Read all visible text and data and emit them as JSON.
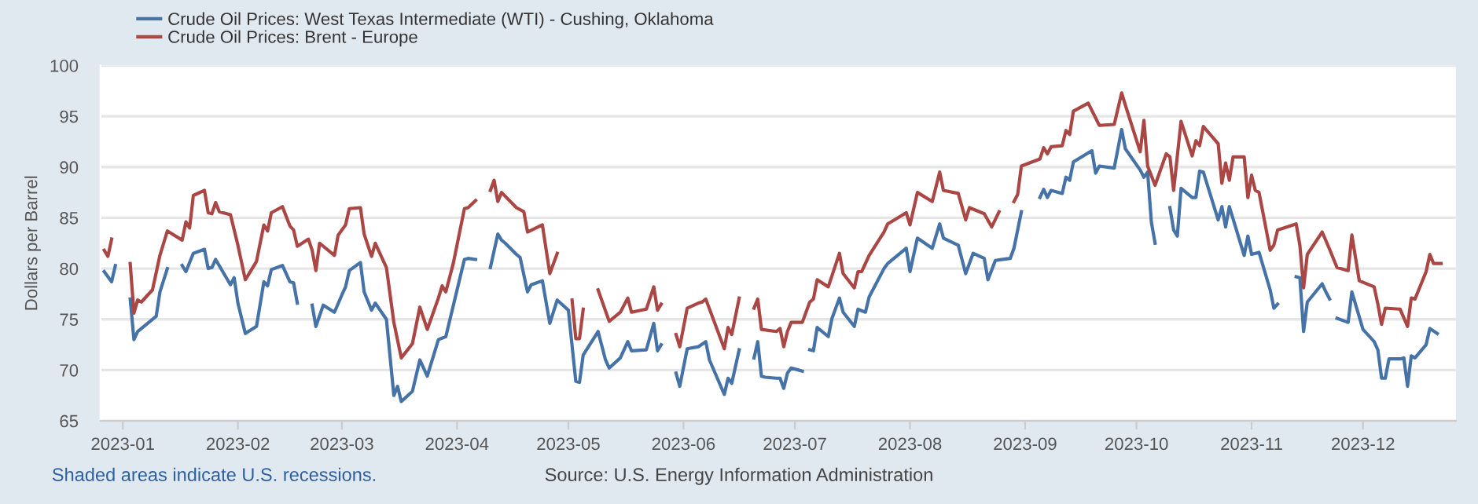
{
  "chart_data": {
    "type": "line",
    "ylabel": "Dollars per Barrel",
    "annotations": [
      "Shaded areas indicate U.S. recessions.",
      "Source: U.S. Energy Information Administration"
    ],
    "xlim": [
      "2022-12-26",
      "2023-12-26"
    ],
    "xticks": [
      {
        "value": "2023-01-01",
        "label": "2023-01"
      },
      {
        "value": "2023-02-01",
        "label": "2023-02"
      },
      {
        "value": "2023-03-01",
        "label": "2023-03"
      },
      {
        "value": "2023-04-01",
        "label": "2023-04"
      },
      {
        "value": "2023-05-01",
        "label": "2023-05"
      },
      {
        "value": "2023-06-01",
        "label": "2023-06"
      },
      {
        "value": "2023-07-01",
        "label": "2023-07"
      },
      {
        "value": "2023-08-01",
        "label": "2023-08"
      },
      {
        "value": "2023-09-01",
        "label": "2023-09"
      },
      {
        "value": "2023-10-01",
        "label": "2023-10"
      },
      {
        "value": "2023-11-01",
        "label": "2023-11"
      },
      {
        "value": "2023-12-01",
        "label": "2023-12"
      }
    ],
    "ylim": [
      65,
      100
    ],
    "yticks": [
      65,
      70,
      75,
      80,
      85,
      90,
      95,
      100
    ],
    "grid": "y",
    "legend": "top left",
    "line_style": "solid",
    "series": [
      {
        "name": "Crude Oil Prices: West Texas Intermediate (WTI) - Cushing, Oklahoma",
        "color": "#4572a7",
        "x": [
          "2022-12-27",
          "2022-12-29",
          "2022-12-30",
          "2023-01-02",
          "2023-01-03",
          "2023-01-04",
          "2023-01-05",
          "2023-01-10",
          "2023-01-11",
          "2023-01-13",
          "2023-01-16",
          "2023-01-17",
          "2023-01-18",
          "2023-01-20",
          "2023-01-23",
          "2023-01-24",
          "2023-01-25",
          "2023-01-26",
          "2023-01-30",
          "2023-01-31",
          "2023-02-01",
          "2023-02-03",
          "2023-02-06",
          "2023-02-08",
          "2023-02-09",
          "2023-02-10",
          "2023-02-13",
          "2023-02-15",
          "2023-02-16",
          "2023-02-17",
          "2023-02-20",
          "2023-02-21",
          "2023-02-22",
          "2023-02-24",
          "2023-02-27",
          "2023-03-01",
          "2023-03-02",
          "2023-03-03",
          "2023-03-06",
          "2023-03-07",
          "2023-03-09",
          "2023-03-10",
          "2023-03-13",
          "2023-03-15",
          "2023-03-16",
          "2023-03-17",
          "2023-03-20",
          "2023-03-22",
          "2023-03-24",
          "2023-03-27",
          "2023-03-29",
          "2023-04-03",
          "2023-04-04",
          "2023-04-06",
          "2023-04-07",
          "2023-04-10",
          "2023-04-12",
          "2023-04-13",
          "2023-04-14",
          "2023-04-17",
          "2023-04-18",
          "2023-04-20",
          "2023-04-21",
          "2023-04-24",
          "2023-04-26",
          "2023-04-28",
          "2023-05-01",
          "2023-05-03",
          "2023-05-04",
          "2023-05-05",
          "2023-05-09",
          "2023-05-11",
          "2023-05-12",
          "2023-05-15",
          "2023-05-17",
          "2023-05-18",
          "2023-05-22",
          "2023-05-24",
          "2023-05-25",
          "2023-05-26",
          "2023-05-29",
          "2023-05-30",
          "2023-05-31",
          "2023-06-02",
          "2023-06-05",
          "2023-06-07",
          "2023-06-08",
          "2023-06-12",
          "2023-06-13",
          "2023-06-14",
          "2023-06-16",
          "2023-06-19",
          "2023-06-20",
          "2023-06-21",
          "2023-06-22",
          "2023-06-23",
          "2023-06-26",
          "2023-06-27",
          "2023-06-28",
          "2023-06-29",
          "2023-06-30",
          "2023-07-03",
          "2023-07-04",
          "2023-07-05",
          "2023-07-06",
          "2023-07-07",
          "2023-07-10",
          "2023-07-11",
          "2023-07-13",
          "2023-07-14",
          "2023-07-17",
          "2023-07-18",
          "2023-07-20",
          "2023-07-21",
          "2023-07-25",
          "2023-07-26",
          "2023-07-31",
          "2023-08-01",
          "2023-08-03",
          "2023-08-07",
          "2023-08-09",
          "2023-08-10",
          "2023-08-14",
          "2023-08-16",
          "2023-08-18",
          "2023-08-21",
          "2023-08-22",
          "2023-08-24",
          "2023-08-28",
          "2023-08-29",
          "2023-08-31",
          "2023-09-04",
          "2023-09-05",
          "2023-09-06",
          "2023-09-07",
          "2023-09-08",
          "2023-09-11",
          "2023-09-12",
          "2023-09-13",
          "2023-09-14",
          "2023-09-18",
          "2023-09-19",
          "2023-09-20",
          "2023-09-21",
          "2023-09-25",
          "2023-09-27",
          "2023-09-28",
          "2023-10-02",
          "2023-10-03",
          "2023-10-04",
          "2023-10-05",
          "2023-10-06",
          "2023-10-09",
          "2023-10-10",
          "2023-10-11",
          "2023-10-12",
          "2023-10-13",
          "2023-10-16",
          "2023-10-17",
          "2023-10-18",
          "2023-10-19",
          "2023-10-23",
          "2023-10-24",
          "2023-10-25",
          "2023-10-26",
          "2023-10-30",
          "2023-10-31",
          "2023-11-01",
          "2023-11-03",
          "2023-11-06",
          "2023-11-07",
          "2023-11-08",
          "2023-11-10",
          "2023-11-13",
          "2023-11-14",
          "2023-11-15",
          "2023-11-16",
          "2023-11-20",
          "2023-11-21",
          "2023-11-22",
          "2023-11-23",
          "2023-11-24",
          "2023-11-27",
          "2023-11-28",
          "2023-12-01",
          "2023-12-04",
          "2023-12-05",
          "2023-12-06",
          "2023-12-07",
          "2023-12-08",
          "2023-12-11",
          "2023-12-12",
          "2023-12-13",
          "2023-12-14",
          "2023-12-15",
          "2023-12-18",
          "2023-12-19",
          "2023-12-21"
        ],
        "values": [
          79.7,
          78.7,
          80.3,
          null,
          77.0,
          73.0,
          73.8,
          75.3,
          77.7,
          80.0,
          null,
          80.3,
          79.7,
          81.5,
          81.9,
          80.0,
          80.1,
          80.9,
          78.4,
          79.1,
          76.6,
          73.6,
          74.3,
          78.7,
          78.3,
          79.9,
          80.3,
          78.7,
          78.6,
          76.6,
          null,
          76.4,
          74.3,
          76.4,
          75.7,
          77.4,
          78.2,
          79.8,
          80.6,
          77.7,
          75.9,
          76.6,
          75.0,
          67.5,
          68.4,
          66.9,
          67.9,
          71.0,
          69.4,
          73.0,
          73.3,
          80.9,
          81.0,
          80.9,
          null,
          80.1,
          83.4,
          82.8,
          82.5,
          81.4,
          81.1,
          77.7,
          78.4,
          78.8,
          74.6,
          76.9,
          75.9,
          68.9,
          68.8,
          71.5,
          73.8,
          71.0,
          70.2,
          71.2,
          72.8,
          71.9,
          72.0,
          74.6,
          71.9,
          72.5,
          null,
          69.7,
          68.4,
          72.1,
          72.3,
          72.8,
          71.0,
          67.6,
          69.2,
          68.7,
          72.0,
          null,
          71.2,
          72.8,
          69.4,
          69.3,
          69.2,
          69.2,
          68.2,
          69.7,
          70.2,
          69.9,
          null,
          72.0,
          71.9,
          74.2,
          73.3,
          75.1,
          77.1,
          75.7,
          74.3,
          76.0,
          75.7,
          77.2,
          80.0,
          80.5,
          82.0,
          79.7,
          83.0,
          82.0,
          84.4,
          83.0,
          82.3,
          79.5,
          81.5,
          81.0,
          78.9,
          80.8,
          81.0,
          82.0,
          85.6,
          null,
          87.0,
          87.8,
          87.0,
          87.7,
          87.4,
          89.0,
          88.7,
          90.5,
          91.4,
          91.6,
          89.4,
          90.1,
          89.9,
          93.7,
          91.8,
          89.7,
          89.0,
          89.5,
          84.6,
          82.5,
          null,
          86.0,
          83.8,
          83.2,
          87.9,
          87.0,
          87.0,
          89.6,
          89.5,
          84.8,
          86.1,
          84.1,
          86.1,
          81.3,
          83.2,
          81.4,
          81.6,
          77.9,
          76.1,
          76.5,
          null,
          79.2,
          79.1,
          73.8,
          76.7,
          78.5,
          77.7,
          77.0,
          null,
          75.1,
          74.7,
          77.7,
          74.0,
          72.8,
          72.0,
          69.2,
          69.2,
          71.1,
          71.1,
          71.2,
          68.4,
          71.4,
          71.2,
          72.5,
          74.1,
          73.6
        ]
      },
      {
        "name": "Crude Oil Prices: Brent - Europe",
        "color": "#aa4643",
        "x": [
          "2022-12-27",
          "2022-12-28",
          "2022-12-29",
          "2023-01-02",
          "2023-01-03",
          "2023-01-04",
          "2023-01-05",
          "2023-01-06",
          "2023-01-09",
          "2023-01-11",
          "2023-01-13",
          "2023-01-17",
          "2023-01-18",
          "2023-01-19",
          "2023-01-20",
          "2023-01-23",
          "2023-01-24",
          "2023-01-25",
          "2023-01-26",
          "2023-01-27",
          "2023-01-30",
          "2023-02-01",
          "2023-02-03",
          "2023-02-06",
          "2023-02-08",
          "2023-02-09",
          "2023-02-10",
          "2023-02-13",
          "2023-02-15",
          "2023-02-16",
          "2023-02-17",
          "2023-02-20",
          "2023-02-21",
          "2023-02-22",
          "2023-02-23",
          "2023-02-27",
          "2023-02-28",
          "2023-03-02",
          "2023-03-03",
          "2023-03-06",
          "2023-03-07",
          "2023-03-09",
          "2023-03-10",
          "2023-03-13",
          "2023-03-15",
          "2023-03-17",
          "2023-03-20",
          "2023-03-22",
          "2023-03-24",
          "2023-03-27",
          "2023-03-28",
          "2023-03-29",
          "2023-03-31",
          "2023-04-03",
          "2023-04-04",
          "2023-04-06",
          "2023-04-07",
          "2023-04-10",
          "2023-04-11",
          "2023-04-12",
          "2023-04-13",
          "2023-04-17",
          "2023-04-19",
          "2023-04-20",
          "2023-04-24",
          "2023-04-26",
          "2023-04-28",
          "2023-05-01",
          "2023-05-02",
          "2023-05-03",
          "2023-05-04",
          "2023-05-05",
          "2023-05-08",
          "2023-05-09",
          "2023-05-12",
          "2023-05-15",
          "2023-05-17",
          "2023-05-18",
          "2023-05-22",
          "2023-05-24",
          "2023-05-25",
          "2023-05-26",
          "2023-05-29",
          "2023-05-30",
          "2023-05-31",
          "2023-06-02",
          "2023-06-05",
          "2023-06-06",
          "2023-06-07",
          "2023-06-12",
          "2023-06-13",
          "2023-06-14",
          "2023-06-16",
          "2023-06-19",
          "2023-06-20",
          "2023-06-21",
          "2023-06-22",
          "2023-06-26",
          "2023-06-27",
          "2023-06-28",
          "2023-06-29",
          "2023-06-30",
          "2023-07-03",
          "2023-07-05",
          "2023-07-06",
          "2023-07-07",
          "2023-07-10",
          "2023-07-13",
          "2023-07-14",
          "2023-07-17",
          "2023-07-18",
          "2023-07-19",
          "2023-07-21",
          "2023-07-25",
          "2023-07-26",
          "2023-07-31",
          "2023-08-01",
          "2023-08-03",
          "2023-08-07",
          "2023-08-09",
          "2023-08-10",
          "2023-08-14",
          "2023-08-16",
          "2023-08-17",
          "2023-08-21",
          "2023-08-23",
          "2023-08-25",
          "2023-08-28",
          "2023-08-29",
          "2023-08-30",
          "2023-08-31",
          "2023-09-05",
          "2023-09-06",
          "2023-09-07",
          "2023-09-08",
          "2023-09-11",
          "2023-09-12",
          "2023-09-13",
          "2023-09-14",
          "2023-09-18",
          "2023-09-21",
          "2023-09-25",
          "2023-09-27",
          "2023-09-28",
          "2023-10-02",
          "2023-10-03",
          "2023-10-04",
          "2023-10-06",
          "2023-10-09",
          "2023-10-10",
          "2023-10-11",
          "2023-10-13",
          "2023-10-16",
          "2023-10-17",
          "2023-10-18",
          "2023-10-19",
          "2023-10-23",
          "2023-10-24",
          "2023-10-25",
          "2023-10-26",
          "2023-10-27",
          "2023-10-30",
          "2023-10-31",
          "2023-11-01",
          "2023-11-02",
          "2023-11-03",
          "2023-11-06",
          "2023-11-07",
          "2023-11-08",
          "2023-11-13",
          "2023-11-14",
          "2023-11-15",
          "2023-11-16",
          "2023-11-20",
          "2023-11-22",
          "2023-11-24",
          "2023-11-27",
          "2023-11-28",
          "2023-11-30",
          "2023-12-04",
          "2023-12-05",
          "2023-12-06",
          "2023-12-07",
          "2023-12-11",
          "2023-12-13",
          "2023-12-14",
          "2023-12-15",
          "2023-12-18",
          "2023-12-19",
          "2023-12-20",
          "2023-12-22"
        ],
        "values": [
          81.8,
          81.2,
          82.9,
          null,
          80.5,
          75.6,
          76.9,
          76.7,
          77.9,
          81.3,
          83.7,
          82.8,
          84.6,
          84.0,
          87.2,
          87.7,
          85.5,
          85.4,
          86.5,
          85.6,
          85.3,
          82.3,
          78.9,
          80.7,
          84.3,
          83.7,
          85.5,
          86.1,
          84.2,
          83.8,
          82.2,
          82.9,
          81.8,
          79.8,
          82.5,
          81.3,
          83.3,
          84.3,
          85.9,
          86.0,
          83.4,
          81.2,
          82.5,
          80.1,
          74.7,
          71.2,
          72.6,
          76.2,
          74.0,
          77.1,
          78.3,
          77.7,
          80.5,
          85.9,
          86.0,
          86.7,
          null,
          87.7,
          88.7,
          86.6,
          87.5,
          86.0,
          85.6,
          83.6,
          84.3,
          79.5,
          81.5,
          null,
          76.9,
          73.1,
          73.1,
          76.0,
          null,
          77.9,
          74.8,
          75.7,
          77.1,
          75.7,
          76.0,
          78.2,
          75.9,
          76.5,
          null,
          73.5,
          72.3,
          76.1,
          76.6,
          76.7,
          77.0,
          72.1,
          74.2,
          73.5,
          77.1,
          null,
          76.1,
          77.0,
          74.0,
          73.8,
          74.1,
          72.3,
          73.8,
          74.7,
          74.7,
          76.7,
          77.0,
          78.9,
          78.2,
          81.5,
          79.5,
          78.1,
          79.7,
          79.7,
          81.3,
          83.6,
          84.4,
          85.5,
          84.3,
          87.5,
          86.6,
          89.5,
          87.7,
          87.4,
          84.8,
          86.0,
          85.4,
          84.1,
          85.6,
          null,
          86.6,
          87.3,
          90.1,
          90.8,
          91.9,
          91.3,
          92.0,
          92.1,
          93.6,
          93.2,
          95.5,
          96.3,
          94.1,
          94.2,
          97.3,
          96.1,
          91.5,
          94.6,
          90.1,
          88.2,
          91.3,
          91.0,
          87.7,
          94.5,
          91.1,
          92.6,
          92.1,
          94.0,
          92.3,
          88.4,
          90.4,
          88.7,
          91.0,
          91.0,
          87.0,
          89.2,
          87.7,
          87.5,
          81.8,
          82.3,
          83.8,
          84.4,
          82.3,
          78.1,
          81.4,
          83.6,
          81.9,
          80.1,
          79.8,
          83.3,
          78.8,
          78.2,
          76.5,
          74.5,
          76.1,
          76.0,
          74.3,
          77.1,
          77.0,
          79.7,
          81.4,
          80.5,
          80.5
        ]
      }
    ]
  }
}
